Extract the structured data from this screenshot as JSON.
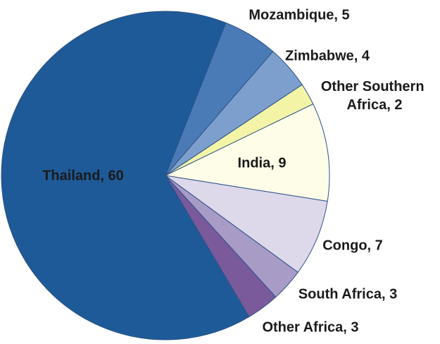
{
  "chart_data": {
    "type": "pie",
    "labels": [
      "Mozambique, 5",
      "Zimbabwe, 4",
      "Other Southern Africa, 2",
      "India, 9",
      "Congo, 7",
      "South Africa, 3",
      "Other Africa, 3",
      "Thailand, 60"
    ],
    "values": [
      5,
      4,
      2,
      9,
      7,
      3,
      3,
      60
    ],
    "colors": [
      "#4b7bb6",
      "#7d9fcd",
      "#f4f4a6",
      "#fefde8",
      "#ddd9ea",
      "#a89bc6",
      "#7a5a9b",
      "#1e5a97"
    ]
  }
}
